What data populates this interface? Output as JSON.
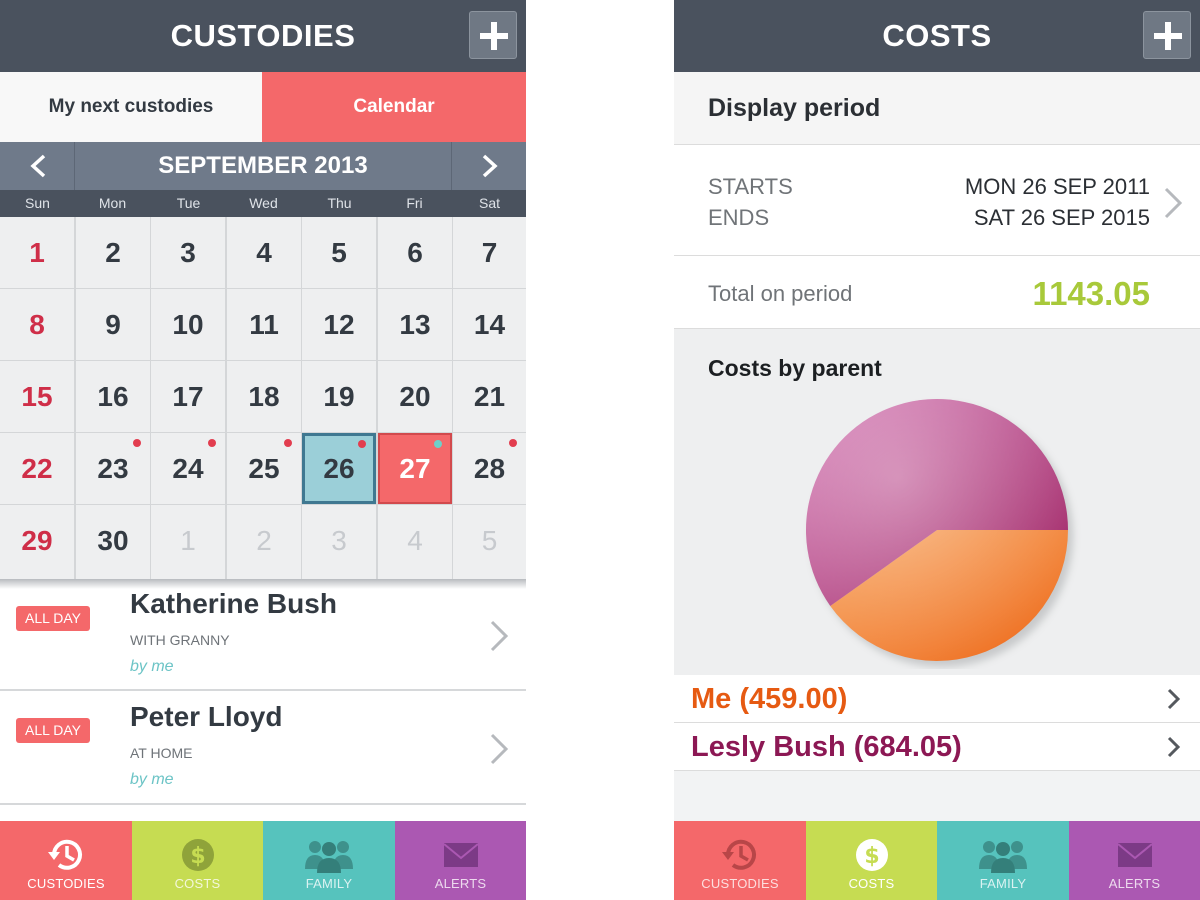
{
  "colors": {
    "custodies": "#f4686a",
    "costs": "#c6dc52",
    "family": "#56c3bd",
    "alerts": "#ab58b2",
    "me": "#e65a12",
    "lesly": "#8c1854",
    "total": "#a8c93a"
  },
  "left": {
    "title": "CUSTODIES",
    "segments": {
      "next": "My next custodies",
      "calendar": "Calendar"
    },
    "month": "SEPTEMBER 2013",
    "days_of_week": [
      "Sun",
      "Mon",
      "Tue",
      "Wed",
      "Thu",
      "Fri",
      "Sat"
    ],
    "calendar_days": [
      [
        "1",
        "2",
        "3",
        "4",
        "5",
        "6",
        "7"
      ],
      [
        "8",
        "9",
        "10",
        "11",
        "12",
        "13",
        "14"
      ],
      [
        "15",
        "16",
        "17",
        "18",
        "19",
        "20",
        "21"
      ],
      [
        "22",
        "23",
        "24",
        "25",
        "26",
        "27",
        "28"
      ],
      [
        "29",
        "30",
        "1",
        "2",
        "3",
        "4",
        "5"
      ]
    ],
    "events": [
      {
        "badge": "ALL DAY",
        "name": "Katherine Bush",
        "subtitle": "WITH GRANNY",
        "by": "by me"
      },
      {
        "badge": "ALL DAY",
        "name": "Peter Lloyd",
        "subtitle": "AT HOME",
        "by": "by me"
      }
    ]
  },
  "right": {
    "title": "COSTS",
    "display_period_label": "Display period",
    "starts_label": "STARTS",
    "ends_label": "ENDS",
    "starts_value": "MON 26 SEP 2011",
    "ends_value": "SAT 26 SEP 2015",
    "total_label": "Total on period",
    "total_value": "1143.05",
    "chart_title": "Costs by parent",
    "parents": [
      {
        "label": "Me (459.00)"
      },
      {
        "label": "Lesly Bush (684.05)"
      }
    ]
  },
  "tabs": [
    "CUSTODIES",
    "COSTS",
    "FAMILY",
    "ALERTS"
  ],
  "chart_data": {
    "type": "pie",
    "title": "Costs by parent",
    "categories": [
      "Me",
      "Lesly Bush"
    ],
    "values": [
      459.0,
      684.05
    ]
  }
}
